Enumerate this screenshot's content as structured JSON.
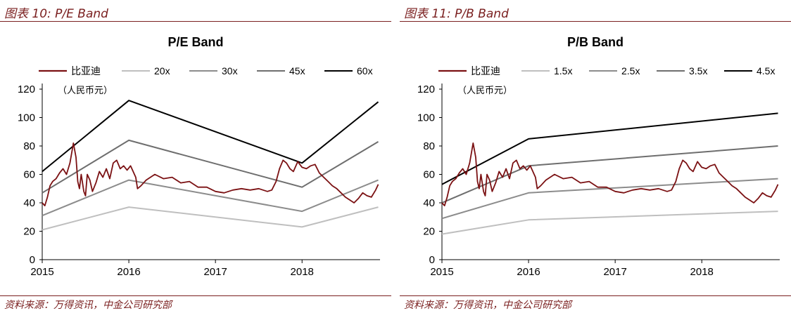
{
  "panels": [
    {
      "figure_title": "图表 10: P/E Band",
      "source": "资料来源：万得资讯，中金公司研究部",
      "chart_data": {
        "type": "line",
        "title": "P/E Band",
        "unit_label": "（人民币元）",
        "xlabel": "",
        "ylabel": "",
        "xlim": [
          2015.0,
          2018.9
        ],
        "ylim": [
          0,
          120
        ],
        "y_ticks": [
          0,
          20,
          40,
          60,
          80,
          100,
          120
        ],
        "x_ticks": [
          2015,
          2016,
          2017,
          2018
        ],
        "x_tick_labels": [
          "2015",
          "2016",
          "2017",
          "2018"
        ],
        "grid": false,
        "legend_position": "top",
        "series": [
          {
            "name": "比亚迪",
            "color": "#7b1113",
            "kind": "price",
            "x": [
              2015.0,
              2015.03,
              2015.06,
              2015.09,
              2015.12,
              2015.16,
              2015.2,
              2015.24,
              2015.28,
              2015.32,
              2015.36,
              2015.39,
              2015.41,
              2015.43,
              2015.45,
              2015.48,
              2015.5,
              2015.52,
              2015.55,
              2015.58,
              2015.62,
              2015.66,
              2015.7,
              2015.74,
              2015.78,
              2015.82,
              2015.86,
              2015.9,
              2015.94,
              2015.98,
              2016.02,
              2016.05,
              2016.08,
              2016.1,
              2016.14,
              2016.2,
              2016.3,
              2016.4,
              2016.5,
              2016.6,
              2016.7,
              2016.8,
              2016.9,
              2017.0,
              2017.1,
              2017.2,
              2017.3,
              2017.4,
              2017.5,
              2017.6,
              2017.65,
              2017.7,
              2017.74,
              2017.78,
              2017.82,
              2017.86,
              2017.9,
              2017.95,
              2018.0,
              2018.05,
              2018.1,
              2018.15,
              2018.2,
              2018.25,
              2018.3,
              2018.35,
              2018.4,
              2018.45,
              2018.5,
              2018.55,
              2018.6,
              2018.65,
              2018.7,
              2018.75,
              2018.8,
              2018.85,
              2018.88
            ],
            "y": [
              40,
              38,
              44,
              52,
              55,
              57,
              61,
              64,
              60,
              68,
              82,
              72,
              55,
              50,
              60,
              48,
              45,
              60,
              56,
              48,
              54,
              62,
              58,
              64,
              57,
              68,
              70,
              64,
              66,
              63,
              66,
              62,
              58,
              50,
              52,
              56,
              60,
              57,
              58,
              54,
              55,
              51,
              51,
              48,
              47,
              49,
              50,
              49,
              50,
              48,
              49,
              55,
              64,
              70,
              68,
              64,
              62,
              69,
              65,
              64,
              66,
              67,
              61,
              58,
              55,
              52,
              50,
              47,
              44,
              42,
              40,
              43,
              47,
              45,
              44,
              49,
              53
            ]
          },
          {
            "name": "20x",
            "color": "#bfbfbf",
            "kind": "band",
            "x": [
              2015.0,
              2016.0,
              2018.0,
              2018.88
            ],
            "y": [
              21,
              37,
              23,
              37
            ]
          },
          {
            "name": "30x",
            "color": "#8c8c8c",
            "kind": "band",
            "x": [
              2015.0,
              2016.0,
              2018.0,
              2018.88
            ],
            "y": [
              31,
              56,
              34,
              56
            ]
          },
          {
            "name": "45x",
            "color": "#6e6e6e",
            "kind": "band",
            "x": [
              2015.0,
              2016.0,
              2018.0,
              2018.88
            ],
            "y": [
              47,
              84,
              51,
              83
            ]
          },
          {
            "name": "60x",
            "color": "#000000",
            "kind": "band",
            "x": [
              2015.0,
              2016.0,
              2018.0,
              2018.88
            ],
            "y": [
              62,
              112,
              68,
              111
            ]
          }
        ]
      }
    },
    {
      "figure_title": "图表 11: P/B Band",
      "source": "资料来源：万得资讯，中金公司研究部",
      "chart_data": {
        "type": "line",
        "title": "P/B Band",
        "unit_label": "（人民币元）",
        "xlabel": "",
        "ylabel": "",
        "xlim": [
          2015.0,
          2018.9
        ],
        "ylim": [
          0,
          120
        ],
        "y_ticks": [
          0,
          20,
          40,
          60,
          80,
          100,
          120
        ],
        "x_ticks": [
          2015,
          2016,
          2017,
          2018
        ],
        "x_tick_labels": [
          "2015",
          "2016",
          "2017",
          "2018"
        ],
        "grid": false,
        "legend_position": "top",
        "series": [
          {
            "name": "比亚迪",
            "color": "#7b1113",
            "kind": "price",
            "x": [
              2015.0,
              2015.03,
              2015.06,
              2015.09,
              2015.12,
              2015.16,
              2015.2,
              2015.24,
              2015.28,
              2015.32,
              2015.36,
              2015.39,
              2015.41,
              2015.43,
              2015.45,
              2015.48,
              2015.5,
              2015.52,
              2015.55,
              2015.58,
              2015.62,
              2015.66,
              2015.7,
              2015.74,
              2015.78,
              2015.82,
              2015.86,
              2015.9,
              2015.94,
              2015.98,
              2016.02,
              2016.05,
              2016.08,
              2016.1,
              2016.14,
              2016.2,
              2016.3,
              2016.4,
              2016.5,
              2016.6,
              2016.7,
              2016.8,
              2016.9,
              2017.0,
              2017.1,
              2017.2,
              2017.3,
              2017.4,
              2017.5,
              2017.6,
              2017.65,
              2017.7,
              2017.74,
              2017.78,
              2017.82,
              2017.86,
              2017.9,
              2017.95,
              2018.0,
              2018.05,
              2018.1,
              2018.15,
              2018.2,
              2018.25,
              2018.3,
              2018.35,
              2018.4,
              2018.45,
              2018.5,
              2018.55,
              2018.6,
              2018.65,
              2018.7,
              2018.75,
              2018.8,
              2018.85,
              2018.88
            ],
            "y": [
              40,
              38,
              44,
              52,
              55,
              57,
              61,
              64,
              60,
              68,
              82,
              72,
              55,
              50,
              60,
              48,
              45,
              60,
              56,
              48,
              54,
              62,
              58,
              64,
              57,
              68,
              70,
              64,
              66,
              63,
              66,
              62,
              58,
              50,
              52,
              56,
              60,
              57,
              58,
              54,
              55,
              51,
              51,
              48,
              47,
              49,
              50,
              49,
              50,
              48,
              49,
              55,
              64,
              70,
              68,
              64,
              62,
              69,
              65,
              64,
              66,
              67,
              61,
              58,
              55,
              52,
              50,
              47,
              44,
              42,
              40,
              43,
              47,
              45,
              44,
              49,
              53
            ]
          },
          {
            "name": "1.5x",
            "color": "#bfbfbf",
            "kind": "band",
            "x": [
              2015.0,
              2016.0,
              2018.88
            ],
            "y": [
              18,
              28,
              34
            ]
          },
          {
            "name": "2.5x",
            "color": "#8c8c8c",
            "kind": "band",
            "x": [
              2015.0,
              2016.0,
              2018.88
            ],
            "y": [
              29,
              47,
              57
            ]
          },
          {
            "name": "3.5x",
            "color": "#6e6e6e",
            "kind": "band",
            "x": [
              2015.0,
              2016.0,
              2018.88
            ],
            "y": [
              40,
              66,
              80
            ]
          },
          {
            "name": "4.5x",
            "color": "#000000",
            "kind": "band",
            "x": [
              2015.0,
              2016.0,
              2018.88
            ],
            "y": [
              53,
              85,
              103
            ]
          }
        ]
      }
    }
  ]
}
